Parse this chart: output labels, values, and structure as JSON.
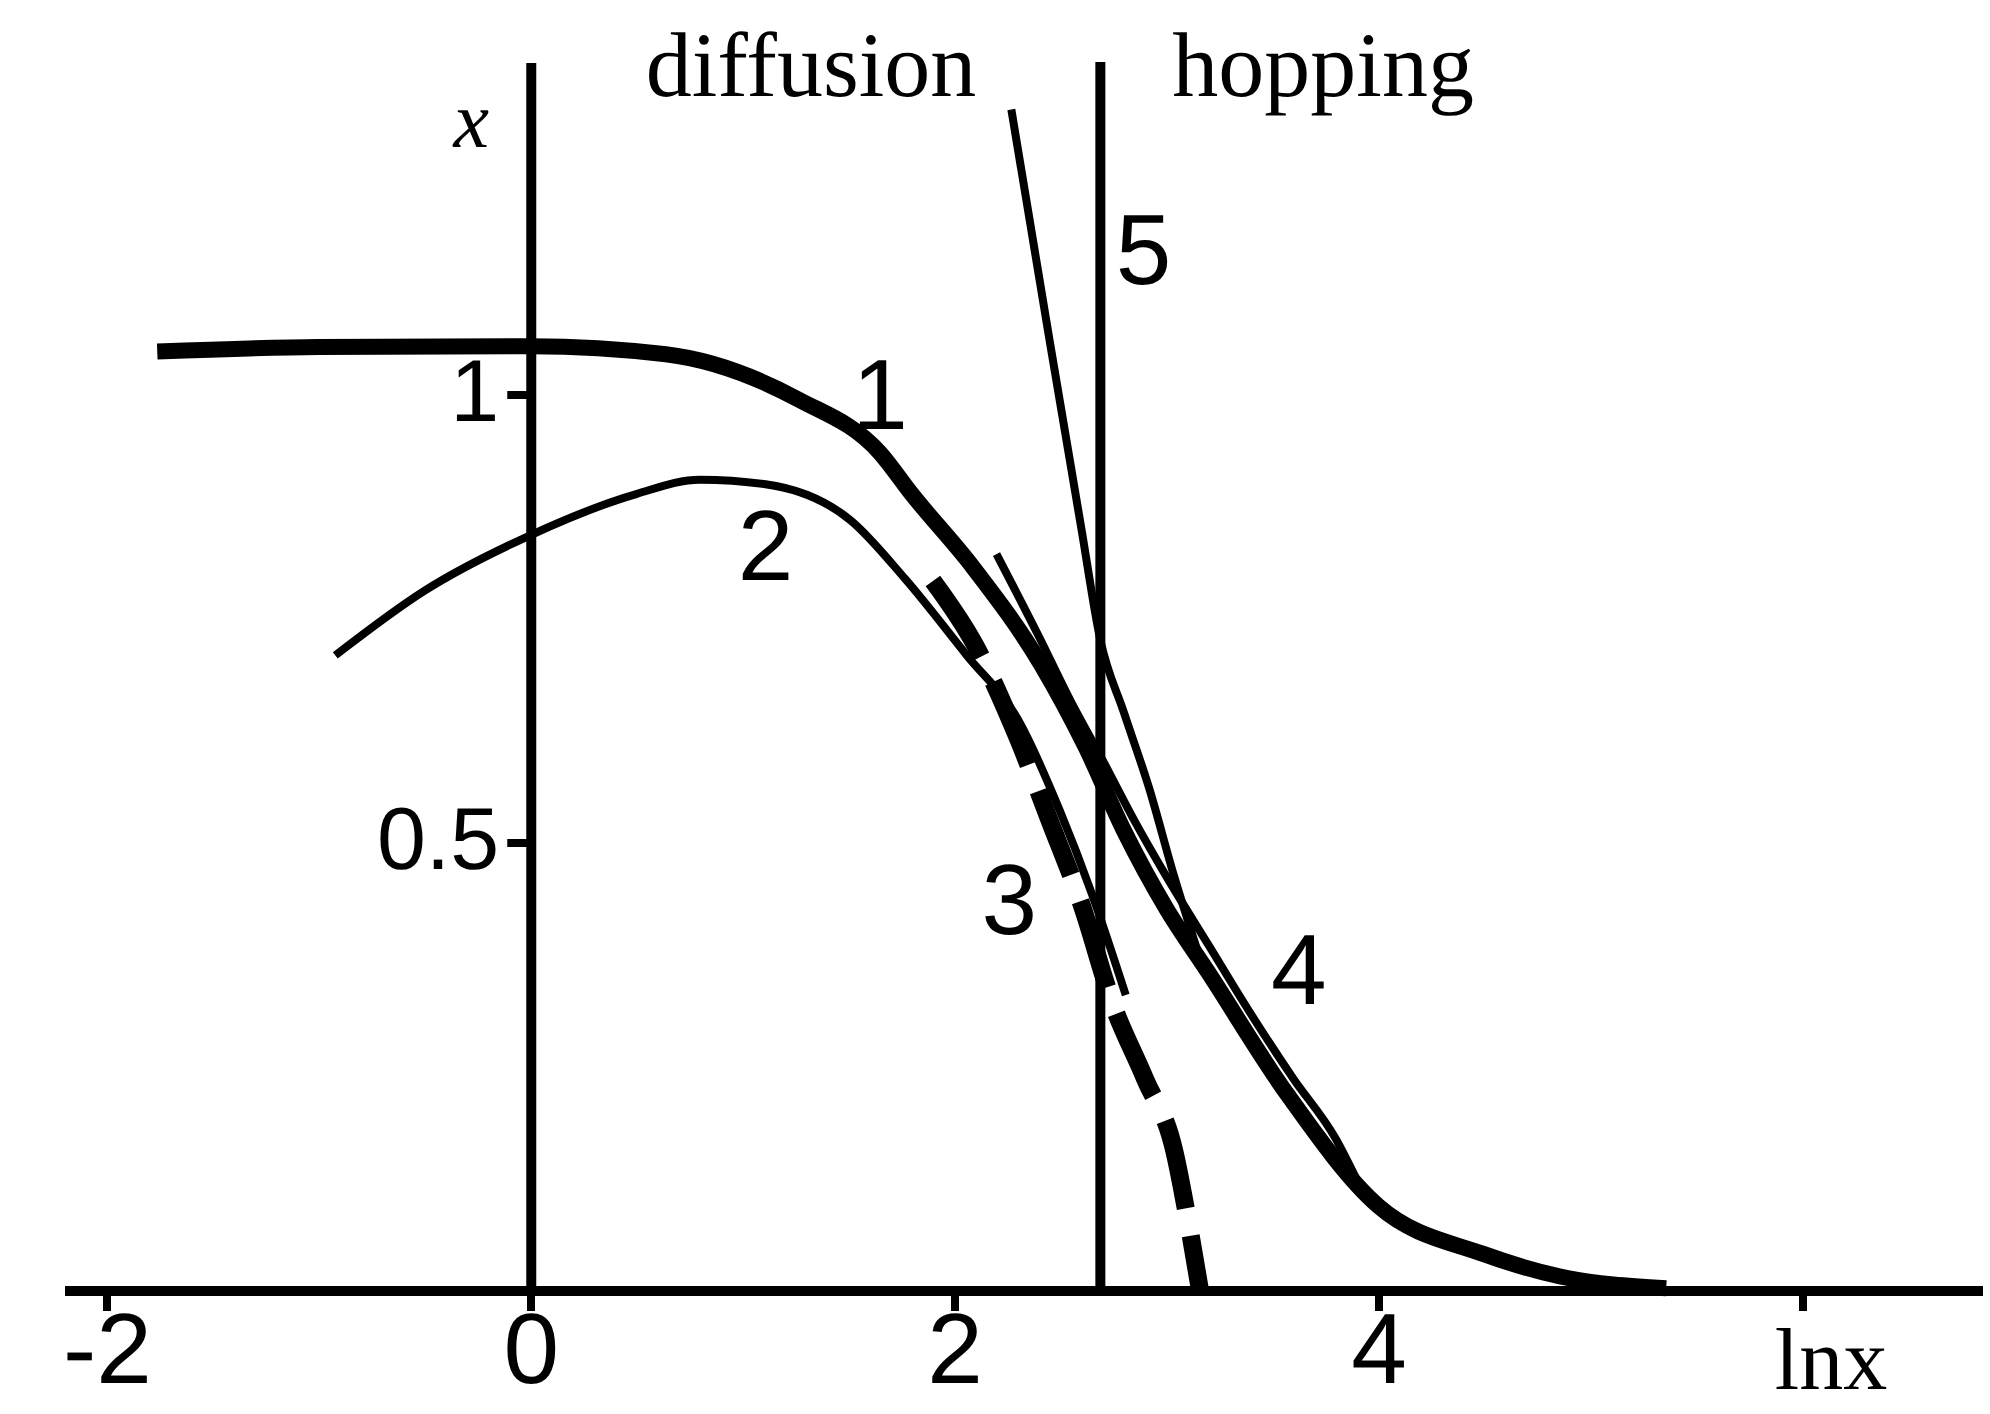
{
  "chart_data": {
    "type": "line",
    "xlabel": "lnx",
    "ylabel": "x",
    "xlim": [
      -2.2,
      6.85
    ],
    "ylim": [
      0,
      1.37
    ],
    "xticks": [
      -2,
      0,
      2,
      4,
      {
        "value": 6,
        "label": null
      }
    ],
    "yticks": [
      0.5,
      1
    ],
    "series": [
      {
        "name": "1",
        "color": "#000000",
        "x": [
          -1.76,
          -1,
          0,
          0.64,
          1.27,
          1.65,
          1.8,
          2.09,
          2.41,
          2.62,
          2.8,
          3.0,
          3.2,
          3.57,
          4.0,
          4.5,
          4.86,
          5.36
        ],
        "values": [
          1.047,
          1.052,
          1.053,
          1.044,
          0.993,
          0.934,
          0.888,
          0.806,
          0.698,
          0.606,
          0.513,
          0.426,
          0.354,
          0.219,
          0.094,
          0.04,
          0.015,
          0.002
        ]
      },
      {
        "name": "2",
        "color": "#000000",
        "x": [
          -0.92,
          -0.5,
          0,
          0.5,
          0.8,
          1.11,
          1.51,
          1.77,
          2.06,
          2.3,
          2.5,
          2.65,
          2.81
        ],
        "values": [
          0.708,
          0.78,
          0.842,
          0.888,
          0.904,
          0.899,
          0.859,
          0.793,
          0.708,
          0.637,
          0.534,
          0.442,
          0.329
        ]
      },
      {
        "name": "3",
        "color": "#000000",
        "line_style": "dashed",
        "x": [
          1.9,
          2.1,
          2.3,
          2.45,
          2.6,
          2.75,
          2.9,
          3.04,
          3.1,
          3.16
        ],
        "values": [
          0.791,
          0.719,
          0.616,
          0.524,
          0.431,
          0.318,
          0.236,
          0.154,
          0.082,
          0
        ]
      },
      {
        "name": "4",
        "color": "#000000",
        "x": [
          2.2,
          2.4,
          2.55,
          2.69,
          2.85,
          3.0,
          3.2,
          3.4,
          3.6,
          3.8,
          3.9
        ],
        "values": [
          0.821,
          0.729,
          0.657,
          0.596,
          0.524,
          0.462,
          0.385,
          0.308,
          0.236,
          0.169,
          0.123
        ]
      },
      {
        "name": "5",
        "color": "#000000",
        "x": [
          2.27,
          2.45,
          2.6,
          2.69,
          2.8,
          2.92,
          3.04,
          3.16
        ],
        "values": [
          1.317,
          1.06,
          0.85,
          0.725,
          0.645,
          0.56,
          0.46,
          0.37
        ]
      }
    ],
    "ref_lines": [
      {
        "axis": "x",
        "value": 2.69
      }
    ],
    "annotations": [
      "diffusion",
      "hopping"
    ]
  }
}
